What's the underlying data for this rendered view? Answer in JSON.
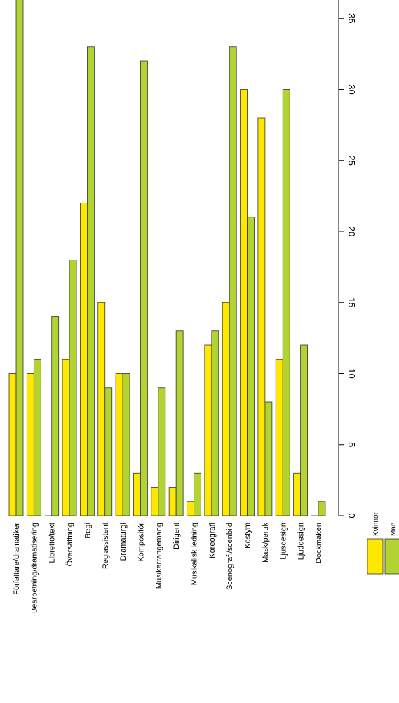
{
  "chart_data": {
    "type": "bar",
    "orientation": "rotated",
    "categories": [
      "Författare/dramatiker",
      "Bearbetning/dramatisering",
      "Libretto/text",
      "Översättning",
      "Regi",
      "Regiassistent",
      "Dramaturgi",
      "Kompositör",
      "Musikarrangemang",
      "Dirigent",
      "Musikalisk ledning",
      "Koreografi",
      "Scenografi/scenbild",
      "Kostym",
      "Mask/peruk",
      "Ljusdesign",
      "Ljuddesign",
      "Dockmakeri"
    ],
    "series": [
      {
        "name": "Kvinnor",
        "color": "#ffe800",
        "values": [
          10,
          10,
          0,
          11,
          22,
          15,
          10,
          3,
          2,
          2,
          1,
          12,
          15,
          30,
          28,
          11,
          3,
          0
        ]
      },
      {
        "name": "Män",
        "color": "#b3d333",
        "values": [
          39,
          11,
          14,
          18,
          33,
          9,
          10,
          32,
          9,
          13,
          3,
          13,
          33,
          21,
          8,
          30,
          12,
          1
        ]
      }
    ],
    "axis_ticks": [
      "0",
      "5",
      "10",
      "15",
      "20",
      "25",
      "30",
      "35",
      "40"
    ],
    "ylim": [
      0,
      40
    ],
    "legend": [
      "Kvinnor",
      "Män"
    ],
    "legend_position": "bottom-right"
  }
}
